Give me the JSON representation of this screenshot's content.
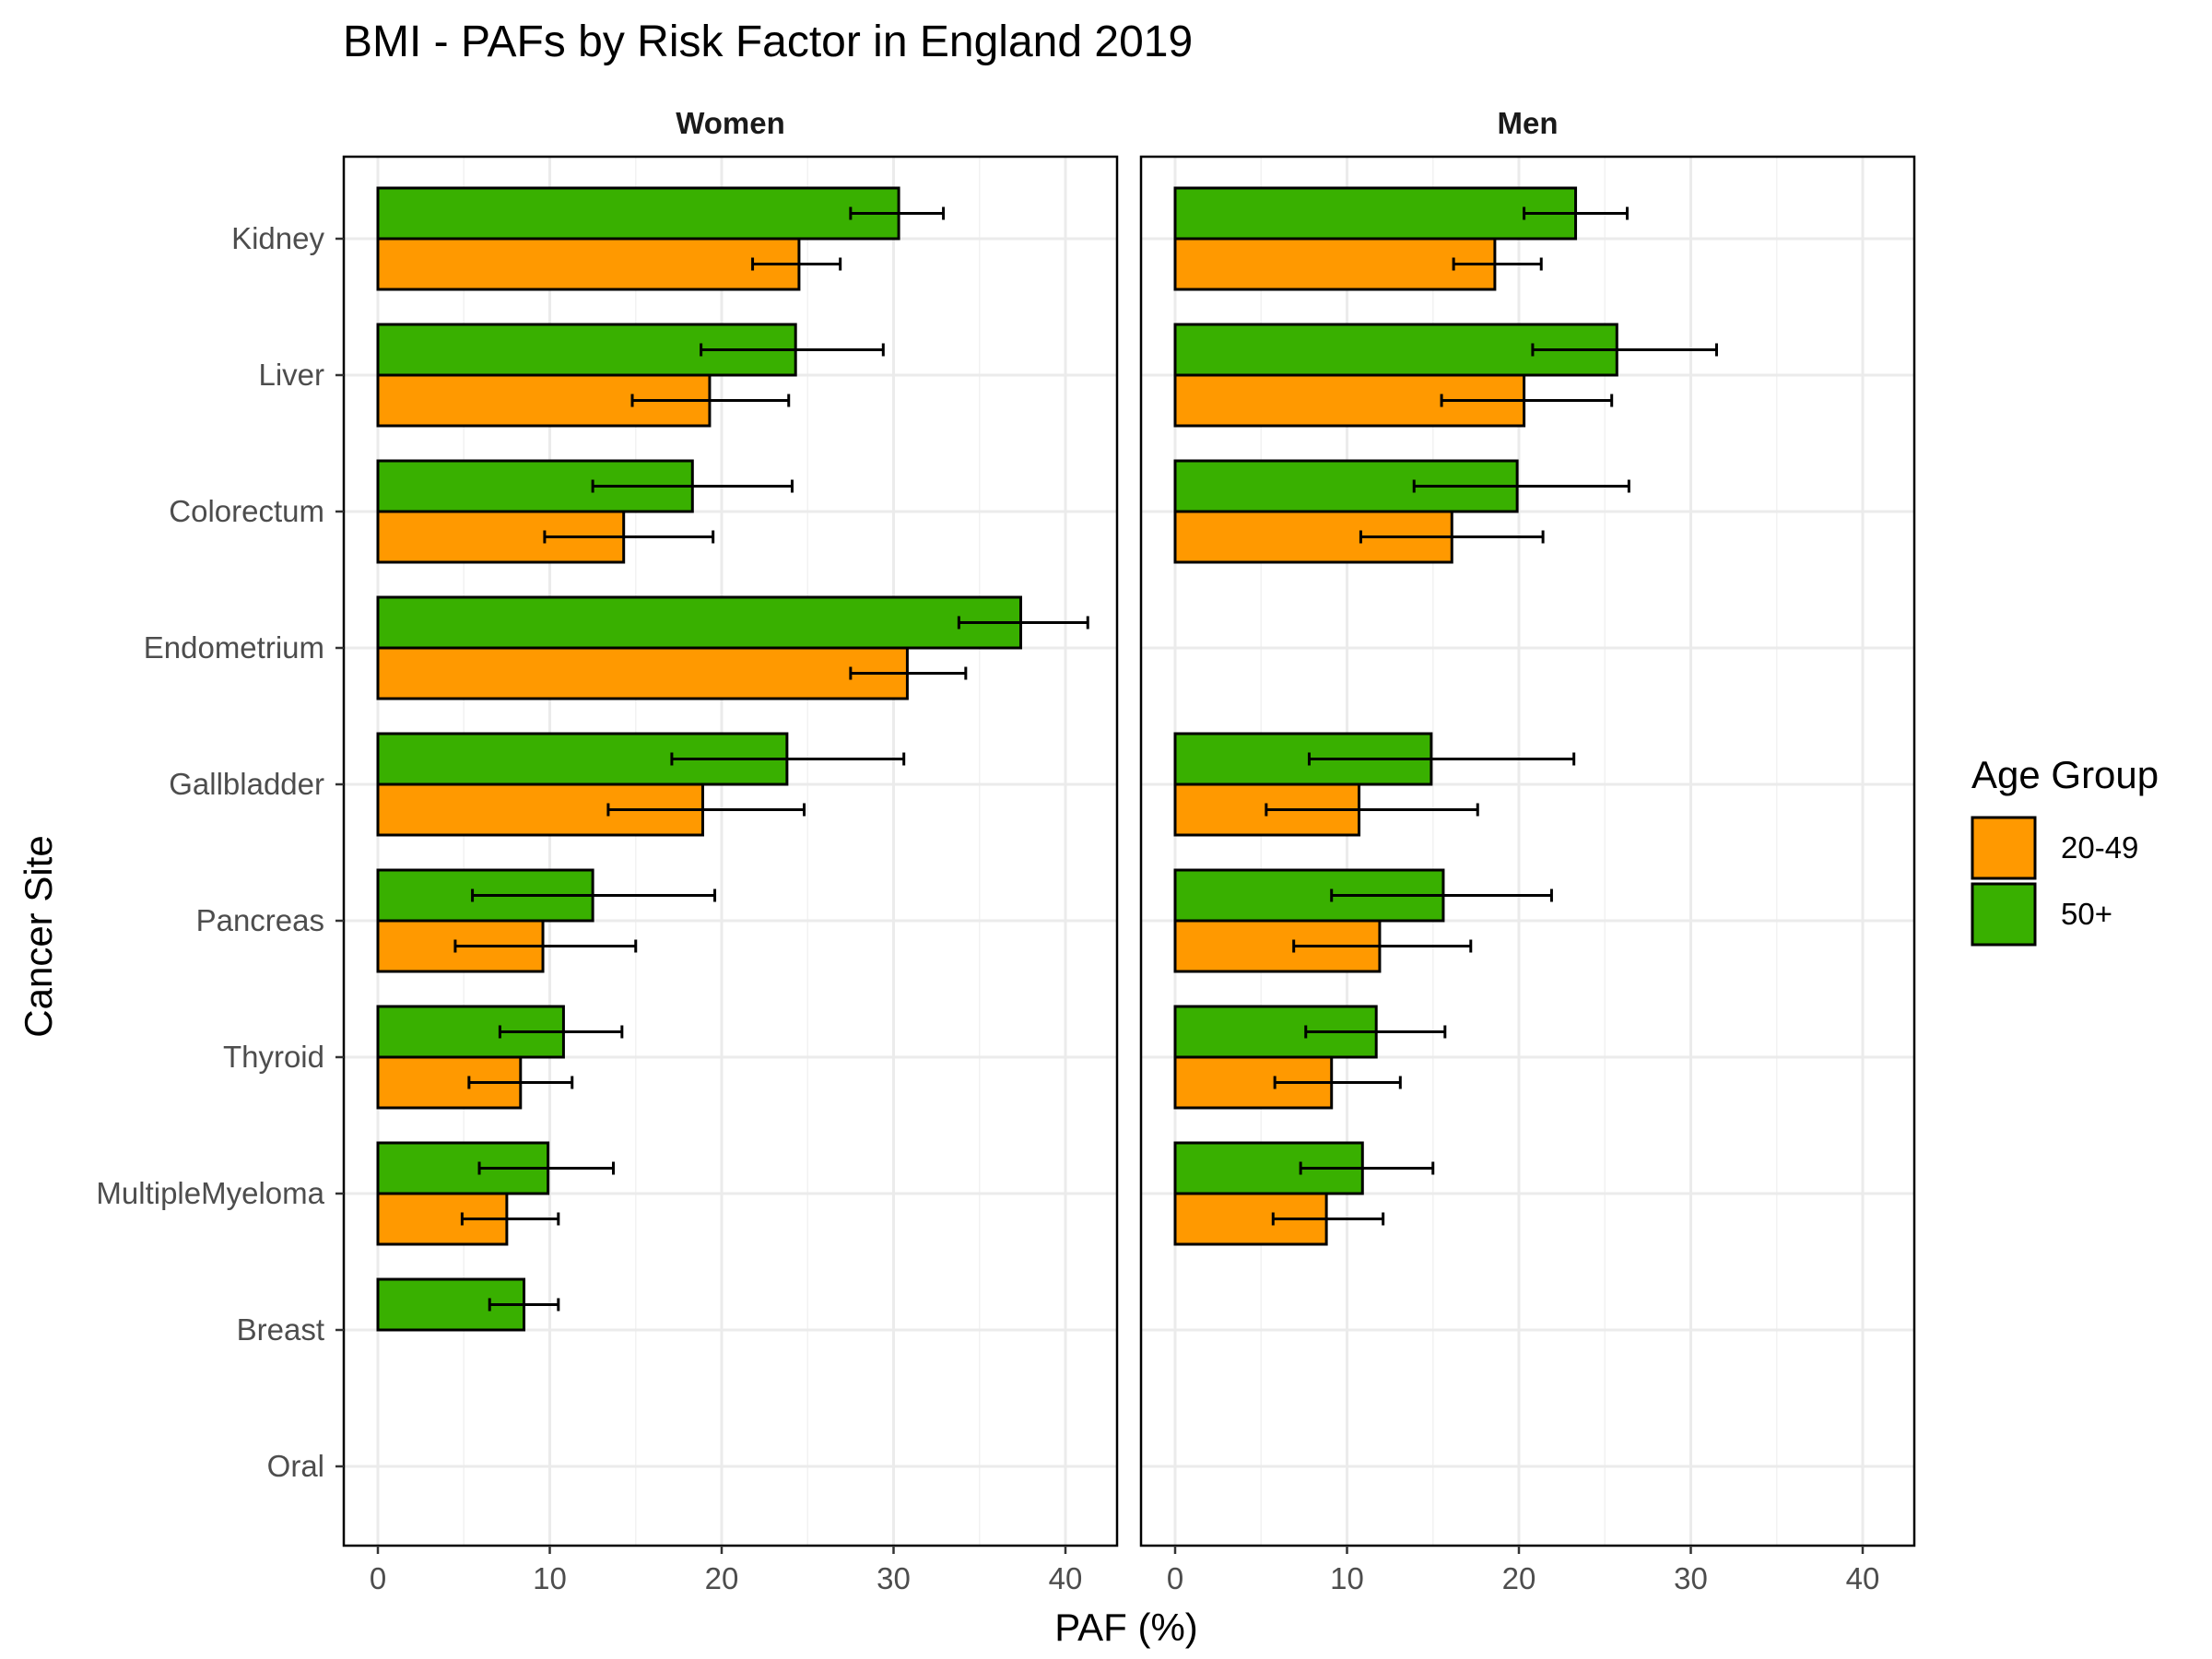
{
  "chart_data": {
    "type": "bar",
    "orientation": "horizontal",
    "title": "BMI  - PAFs by Risk Factor in England 2019",
    "xlabel": "PAF (%)",
    "ylabel": "Cancer Site",
    "xlim": [
      0,
      40
    ],
    "xticks": [
      "0",
      "10",
      "20",
      "30",
      "40"
    ],
    "grid": true,
    "legend": {
      "title": "Age Group",
      "position": "right"
    },
    "categories": [
      "Kidney",
      "Liver",
      "Colorectum",
      "Endometrium",
      "Gallbladder",
      "Pancreas",
      "Thyroid",
      "MultipleMyeloma",
      "Breast",
      "Oral"
    ],
    "series_styles": [
      {
        "name": "20-49",
        "color": "#FF9900"
      },
      {
        "name": "50+",
        "color": "#39B000"
      }
    ],
    "panels": [
      {
        "name": "Women",
        "series": [
          {
            "name": "20-49",
            "values": [
              24.5,
              19.3,
              14.3,
              30.8,
              18.9,
              9.6,
              8.3,
              7.5,
              0,
              0
            ],
            "lower": [
              21.8,
              14.8,
              9.7,
              27.5,
              13.4,
              4.5,
              5.3,
              4.9,
              null,
              null
            ],
            "upper": [
              26.9,
              23.9,
              19.5,
              34.2,
              24.8,
              15.0,
              11.3,
              10.5,
              null,
              null
            ]
          },
          {
            "name": "50+",
            "values": [
              30.3,
              24.3,
              18.3,
              37.4,
              23.8,
              12.5,
              10.8,
              9.9,
              8.5,
              0
            ],
            "lower": [
              27.5,
              18.8,
              12.5,
              33.8,
              17.1,
              5.5,
              7.1,
              5.9,
              6.5,
              null
            ],
            "upper": [
              32.9,
              29.4,
              24.1,
              41.3,
              30.6,
              19.6,
              14.2,
              13.7,
              10.5,
              null
            ]
          }
        ]
      },
      {
        "name": "Men",
        "series": [
          {
            "name": "20-49",
            "values": [
              18.6,
              20.3,
              16.1,
              0,
              10.7,
              11.9,
              9.1,
              8.8,
              0,
              0
            ],
            "lower": [
              16.2,
              15.5,
              10.8,
              null,
              5.3,
              6.9,
              5.8,
              5.7,
              null,
              null
            ],
            "upper": [
              21.3,
              25.4,
              21.4,
              null,
              17.6,
              17.2,
              13.1,
              12.1,
              null,
              null
            ]
          },
          {
            "name": "50+",
            "values": [
              23.3,
              25.7,
              19.9,
              0,
              14.9,
              15.6,
              11.7,
              10.9,
              0,
              0
            ],
            "lower": [
              20.3,
              20.8,
              13.9,
              null,
              7.8,
              9.1,
              7.6,
              7.3,
              null,
              null
            ],
            "upper": [
              26.3,
              31.5,
              26.4,
              null,
              23.2,
              21.9,
              15.7,
              15.0,
              null,
              null
            ]
          }
        ]
      }
    ]
  }
}
